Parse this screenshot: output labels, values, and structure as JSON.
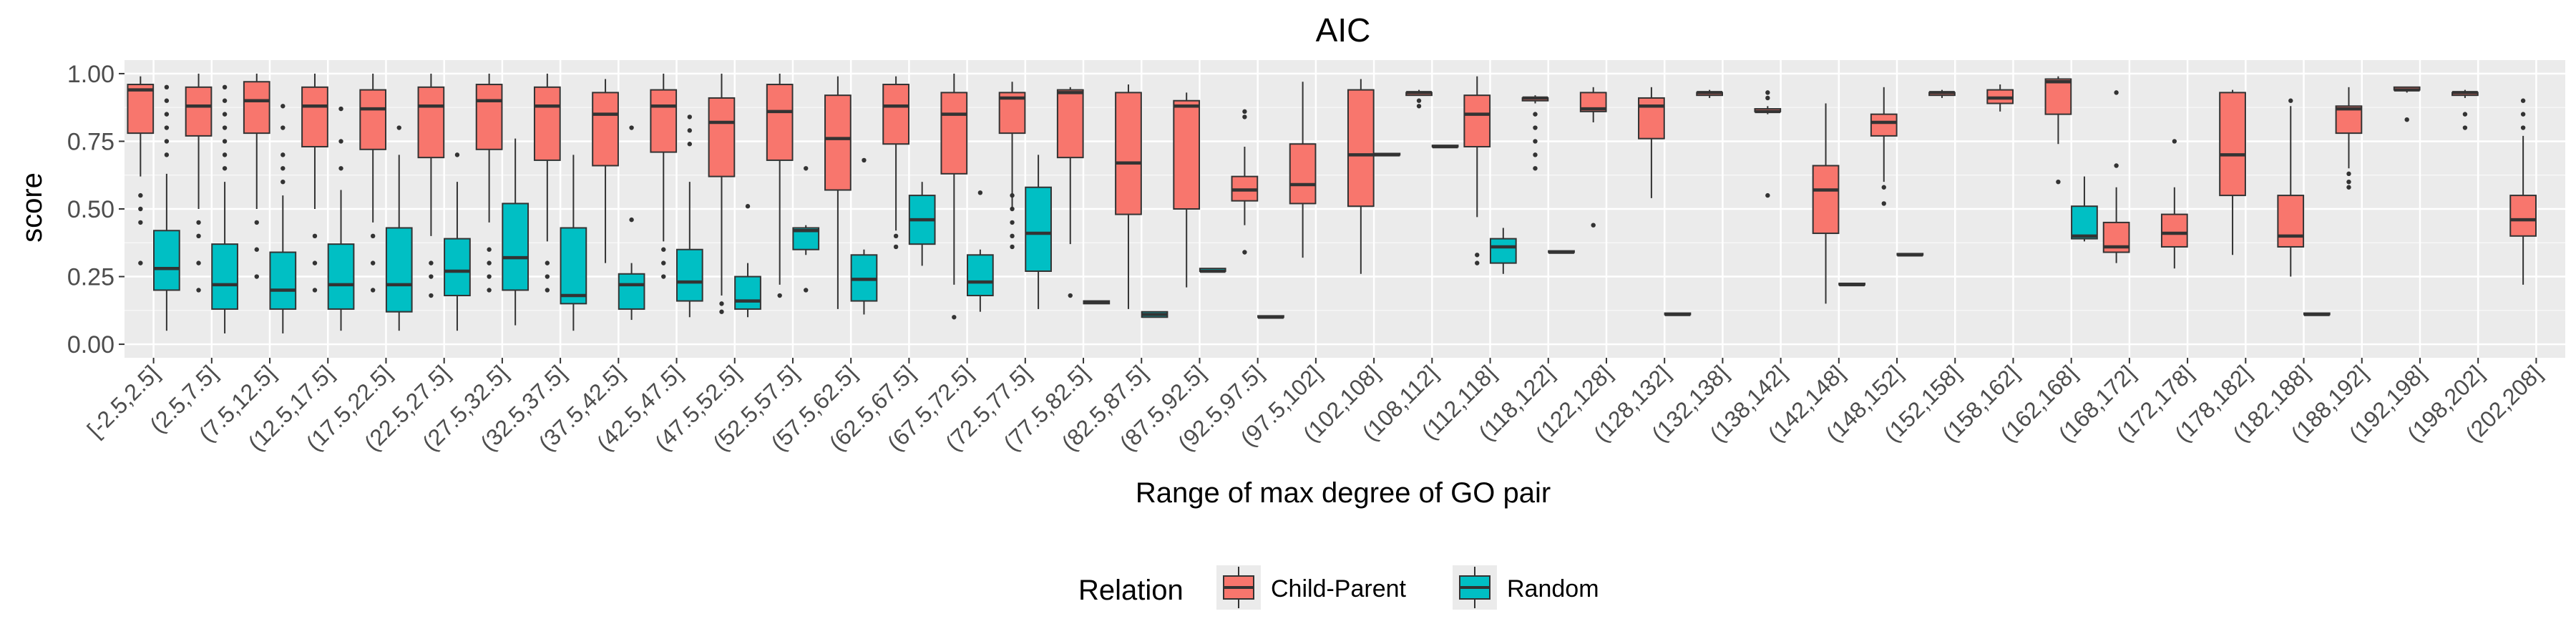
{
  "chart_data": {
    "type": "boxplot",
    "title": "AIC",
    "xlabel": "Range of max degree of GO pair",
    "ylabel": "score",
    "ylim": [
      0,
      1
    ],
    "yticks": [
      "0.00",
      "0.25",
      "0.50",
      "0.75",
      "1.00"
    ],
    "ytick_values": [
      0,
      0.25,
      0.5,
      0.75,
      1.0
    ],
    "grid": true,
    "legend": {
      "title": "Relation",
      "position": "bottom",
      "entries": [
        {
          "name": "Child-Parent",
          "color": "#F8766D"
        },
        {
          "name": "Random",
          "color": "#00BFC4"
        }
      ]
    },
    "categories": [
      "[-2.5,2.5]",
      "(2.5,7.5]",
      "(7.5,12.5]",
      "(12.5,17.5]",
      "(17.5,22.5]",
      "(22.5,27.5]",
      "(27.5,32.5]",
      "(32.5,37.5]",
      "(37.5,42.5]",
      "(42.5,47.5]",
      "(47.5,52.5]",
      "(52.5,57.5]",
      "(57.5,62.5]",
      "(62.5,67.5]",
      "(67.5,72.5]",
      "(72.5,77.5]",
      "(77.5,82.5]",
      "(82.5,87.5]",
      "(87.5,92.5]",
      "(92.5,97.5]",
      "(97.5,102]",
      "(102,108]",
      "(108,112]",
      "(112,118]",
      "(118,122]",
      "(122,128]",
      "(128,132]",
      "(132,138]",
      "(138,142]",
      "(142,148]",
      "(148,152]",
      "(152,158]",
      "(158,162]",
      "(162,168]",
      "(168,172]",
      "(172,178]",
      "(178,182]",
      "(182,188]",
      "(188,192]",
      "(192,198]",
      "(198,202]",
      "(202,208]"
    ],
    "series": [
      {
        "name": "Child-Parent",
        "color": "#F8766D",
        "boxes": [
          {
            "cat": 0,
            "q1": 0.78,
            "med": 0.94,
            "q3": 0.96,
            "lo": 0.62,
            "hi": 0.99,
            "out": [
              0.3,
              0.45,
              0.5,
              0.55
            ]
          },
          {
            "cat": 1,
            "q1": 0.77,
            "med": 0.88,
            "q3": 0.95,
            "lo": 0.5,
            "hi": 1.0,
            "out": [
              0.2,
              0.3,
              0.4,
              0.45
            ]
          },
          {
            "cat": 2,
            "q1": 0.78,
            "med": 0.9,
            "q3": 0.97,
            "lo": 0.5,
            "hi": 1.0,
            "out": [
              0.25,
              0.35,
              0.45
            ]
          },
          {
            "cat": 3,
            "q1": 0.73,
            "med": 0.88,
            "q3": 0.95,
            "lo": 0.5,
            "hi": 1.0,
            "out": [
              0.2,
              0.3,
              0.4
            ]
          },
          {
            "cat": 4,
            "q1": 0.72,
            "med": 0.87,
            "q3": 0.94,
            "lo": 0.45,
            "hi": 1.0,
            "out": [
              0.2,
              0.3,
              0.4
            ]
          },
          {
            "cat": 5,
            "q1": 0.69,
            "med": 0.88,
            "q3": 0.95,
            "lo": 0.4,
            "hi": 1.0,
            "out": [
              0.18,
              0.25,
              0.3
            ]
          },
          {
            "cat": 6,
            "q1": 0.72,
            "med": 0.9,
            "q3": 0.96,
            "lo": 0.45,
            "hi": 1.0,
            "out": [
              0.2,
              0.25,
              0.3,
              0.35
            ]
          },
          {
            "cat": 7,
            "q1": 0.68,
            "med": 0.88,
            "q3": 0.95,
            "lo": 0.38,
            "hi": 1.0,
            "out": [
              0.2,
              0.25,
              0.3
            ]
          },
          {
            "cat": 8,
            "q1": 0.66,
            "med": 0.85,
            "q3": 0.93,
            "lo": 0.3,
            "hi": 0.98,
            "out": []
          },
          {
            "cat": 9,
            "q1": 0.71,
            "med": 0.88,
            "q3": 0.94,
            "lo": 0.38,
            "hi": 1.0,
            "out": [
              0.25,
              0.3,
              0.35
            ]
          },
          {
            "cat": 10,
            "q1": 0.62,
            "med": 0.82,
            "q3": 0.91,
            "lo": 0.18,
            "hi": 1.0,
            "out": [
              0.12,
              0.15
            ]
          },
          {
            "cat": 11,
            "q1": 0.68,
            "med": 0.86,
            "q3": 0.96,
            "lo": 0.22,
            "hi": 1.0,
            "out": [
              0.18
            ]
          },
          {
            "cat": 12,
            "q1": 0.57,
            "med": 0.76,
            "q3": 0.92,
            "lo": 0.13,
            "hi": 0.99,
            "out": []
          },
          {
            "cat": 13,
            "q1": 0.74,
            "med": 0.88,
            "q3": 0.96,
            "lo": 0.42,
            "hi": 0.99,
            "out": [
              0.36,
              0.4
            ]
          },
          {
            "cat": 14,
            "q1": 0.63,
            "med": 0.85,
            "q3": 0.93,
            "lo": 0.22,
            "hi": 1.0,
            "out": [
              0.1
            ]
          },
          {
            "cat": 15,
            "q1": 0.78,
            "med": 0.91,
            "q3": 0.93,
            "lo": 0.5,
            "hi": 0.97,
            "out": [
              0.36,
              0.4,
              0.45,
              0.5,
              0.55
            ]
          },
          {
            "cat": 16,
            "q1": 0.69,
            "med": 0.93,
            "q3": 0.94,
            "lo": 0.37,
            "hi": 0.95,
            "out": [
              0.18
            ]
          },
          {
            "cat": 17,
            "q1": 0.48,
            "med": 0.67,
            "q3": 0.93,
            "lo": 0.13,
            "hi": 0.96,
            "out": []
          },
          {
            "cat": 18,
            "q1": 0.5,
            "med": 0.88,
            "q3": 0.9,
            "lo": 0.21,
            "hi": 0.93,
            "out": []
          },
          {
            "cat": 19,
            "q1": 0.53,
            "med": 0.57,
            "q3": 0.62,
            "lo": 0.44,
            "hi": 0.73,
            "out": [
              0.34,
              0.84,
              0.86
            ]
          },
          {
            "cat": 20,
            "q1": 0.52,
            "med": 0.59,
            "q3": 0.74,
            "lo": 0.32,
            "hi": 0.97,
            "out": []
          },
          {
            "cat": 21,
            "q1": 0.51,
            "med": 0.7,
            "q3": 0.94,
            "lo": 0.26,
            "hi": 0.98,
            "out": []
          },
          {
            "cat": 22,
            "q1": 0.92,
            "med": 0.93,
            "q3": 0.93,
            "lo": 0.92,
            "hi": 0.94,
            "out": [
              0.88,
              0.9
            ]
          },
          {
            "cat": 23,
            "q1": 0.73,
            "med": 0.85,
            "q3": 0.92,
            "lo": 0.47,
            "hi": 0.99,
            "out": [
              0.3,
              0.33
            ]
          },
          {
            "cat": 24,
            "q1": 0.9,
            "med": 0.91,
            "q3": 0.91,
            "lo": 0.89,
            "hi": 0.92,
            "out": [
              0.65,
              0.7,
              0.75,
              0.8,
              0.85
            ]
          },
          {
            "cat": 25,
            "q1": 0.86,
            "med": 0.87,
            "q3": 0.93,
            "lo": 0.82,
            "hi": 0.95,
            "out": [
              0.44
            ]
          },
          {
            "cat": 26,
            "q1": 0.76,
            "med": 0.88,
            "q3": 0.91,
            "lo": 0.54,
            "hi": 0.95,
            "out": []
          },
          {
            "cat": 27,
            "q1": 0.92,
            "med": 0.93,
            "q3": 0.93,
            "lo": 0.91,
            "hi": 0.94,
            "out": []
          },
          {
            "cat": 28,
            "q1": 0.86,
            "med": 0.86,
            "q3": 0.87,
            "lo": 0.85,
            "hi": 0.88,
            "out": [
              0.55,
              0.91,
              0.93
            ]
          },
          {
            "cat": 29,
            "q1": 0.41,
            "med": 0.57,
            "q3": 0.66,
            "lo": 0.15,
            "hi": 0.89,
            "out": []
          },
          {
            "cat": 30,
            "q1": 0.77,
            "med": 0.82,
            "q3": 0.85,
            "lo": 0.6,
            "hi": 0.95,
            "out": [
              0.52,
              0.58
            ]
          },
          {
            "cat": 31,
            "q1": 0.92,
            "med": 0.93,
            "q3": 0.93,
            "lo": 0.91,
            "hi": 0.94,
            "out": []
          },
          {
            "cat": 32,
            "q1": 0.89,
            "med": 0.91,
            "q3": 0.94,
            "lo": 0.86,
            "hi": 0.96,
            "out": []
          },
          {
            "cat": 33,
            "q1": 0.85,
            "med": 0.97,
            "q3": 0.98,
            "lo": 0.74,
            "hi": 0.99,
            "out": [
              0.6
            ]
          },
          {
            "cat": 34,
            "q1": 0.34,
            "med": 0.36,
            "q3": 0.45,
            "lo": 0.3,
            "hi": 0.58,
            "out": [
              0.66,
              0.93
            ]
          },
          {
            "cat": 35,
            "q1": 0.36,
            "med": 0.41,
            "q3": 0.48,
            "lo": 0.28,
            "hi": 0.58,
            "out": [
              0.75
            ]
          },
          {
            "cat": 36,
            "q1": 0.55,
            "med": 0.7,
            "q3": 0.93,
            "lo": 0.33,
            "hi": 0.94,
            "out": []
          },
          {
            "cat": 37,
            "q1": 0.36,
            "med": 0.4,
            "q3": 0.55,
            "lo": 0.25,
            "hi": 0.88,
            "out": [
              0.9
            ]
          },
          {
            "cat": 38,
            "q1": 0.78,
            "med": 0.87,
            "q3": 0.88,
            "lo": 0.65,
            "hi": 0.95,
            "out": [
              0.58,
              0.6,
              0.63
            ]
          },
          {
            "cat": 39,
            "q1": 0.94,
            "med": 0.94,
            "q3": 0.95,
            "lo": 0.93,
            "hi": 0.95,
            "out": [
              0.83
            ]
          },
          {
            "cat": 40,
            "q1": 0.92,
            "med": 0.93,
            "q3": 0.93,
            "lo": 0.91,
            "hi": 0.94,
            "out": [
              0.8,
              0.85
            ]
          },
          {
            "cat": 41,
            "q1": 0.4,
            "med": 0.46,
            "q3": 0.55,
            "lo": 0.22,
            "hi": 0.77,
            "out": [
              0.8,
              0.85,
              0.9
            ]
          }
        ]
      },
      {
        "name": "Random",
        "color": "#00BFC4",
        "boxes": [
          {
            "cat": 0,
            "q1": 0.2,
            "med": 0.28,
            "q3": 0.42,
            "lo": 0.05,
            "hi": 0.63,
            "out": [
              0.7,
              0.75,
              0.8,
              0.85,
              0.9,
              0.95
            ]
          },
          {
            "cat": 1,
            "q1": 0.13,
            "med": 0.22,
            "q3": 0.37,
            "lo": 0.04,
            "hi": 0.6,
            "out": [
              0.65,
              0.7,
              0.75,
              0.8,
              0.85,
              0.9,
              0.95
            ]
          },
          {
            "cat": 2,
            "q1": 0.13,
            "med": 0.2,
            "q3": 0.34,
            "lo": 0.04,
            "hi": 0.55,
            "out": [
              0.6,
              0.65,
              0.7,
              0.8,
              0.88
            ]
          },
          {
            "cat": 3,
            "q1": 0.13,
            "med": 0.22,
            "q3": 0.37,
            "lo": 0.05,
            "hi": 0.57,
            "out": [
              0.65,
              0.75,
              0.87
            ]
          },
          {
            "cat": 4,
            "q1": 0.12,
            "med": 0.22,
            "q3": 0.43,
            "lo": 0.05,
            "hi": 0.7,
            "out": [
              0.8
            ]
          },
          {
            "cat": 5,
            "q1": 0.18,
            "med": 0.27,
            "q3": 0.39,
            "lo": 0.05,
            "hi": 0.6,
            "out": [
              0.7
            ]
          },
          {
            "cat": 6,
            "q1": 0.2,
            "med": 0.32,
            "q3": 0.52,
            "lo": 0.07,
            "hi": 0.76,
            "out": []
          },
          {
            "cat": 7,
            "q1": 0.15,
            "med": 0.18,
            "q3": 0.43,
            "lo": 0.05,
            "hi": 0.7,
            "out": []
          },
          {
            "cat": 8,
            "q1": 0.13,
            "med": 0.22,
            "q3": 0.26,
            "lo": 0.09,
            "hi": 0.3,
            "out": [
              0.46,
              0.8
            ]
          },
          {
            "cat": 9,
            "q1": 0.16,
            "med": 0.23,
            "q3": 0.35,
            "lo": 0.1,
            "hi": 0.6,
            "out": [
              0.74,
              0.79,
              0.84
            ]
          },
          {
            "cat": 10,
            "q1": 0.13,
            "med": 0.16,
            "q3": 0.25,
            "lo": 0.1,
            "hi": 0.3,
            "out": [
              0.51
            ]
          },
          {
            "cat": 11,
            "q1": 0.35,
            "med": 0.42,
            "q3": 0.43,
            "lo": 0.33,
            "hi": 0.44,
            "out": [
              0.2,
              0.65
            ]
          },
          {
            "cat": 12,
            "q1": 0.16,
            "med": 0.24,
            "q3": 0.33,
            "lo": 0.11,
            "hi": 0.35,
            "out": [
              0.68
            ]
          },
          {
            "cat": 13,
            "q1": 0.37,
            "med": 0.46,
            "q3": 0.55,
            "lo": 0.29,
            "hi": 0.6,
            "out": []
          },
          {
            "cat": 14,
            "q1": 0.18,
            "med": 0.23,
            "q3": 0.33,
            "lo": 0.12,
            "hi": 0.35,
            "out": [
              0.56
            ]
          },
          {
            "cat": 15,
            "q1": 0.27,
            "med": 0.41,
            "q3": 0.58,
            "lo": 0.13,
            "hi": 0.7,
            "out": []
          },
          {
            "cat": 16,
            "q1": 0.15,
            "med": 0.155,
            "q3": 0.16,
            "lo": 0.15,
            "hi": 0.16,
            "out": []
          },
          {
            "cat": 17,
            "q1": 0.1,
            "med": 0.11,
            "q3": 0.12,
            "lo": 0.1,
            "hi": 0.12,
            "out": []
          },
          {
            "cat": 18,
            "q1": 0.27,
            "med": 0.27,
            "q3": 0.28,
            "lo": 0.27,
            "hi": 0.28,
            "out": []
          },
          {
            "cat": 19,
            "q1": 0.1,
            "med": 0.1,
            "q3": 0.105,
            "lo": 0.1,
            "hi": 0.105,
            "out": []
          },
          {
            "cat": 21,
            "q1": 0.7,
            "med": 0.7,
            "q3": 0.705,
            "lo": 0.7,
            "hi": 0.705,
            "out": []
          },
          {
            "cat": 22,
            "q1": 0.73,
            "med": 0.73,
            "q3": 0.735,
            "lo": 0.73,
            "hi": 0.735,
            "out": []
          },
          {
            "cat": 23,
            "q1": 0.3,
            "med": 0.36,
            "q3": 0.39,
            "lo": 0.26,
            "hi": 0.43,
            "out": []
          },
          {
            "cat": 24,
            "q1": 0.34,
            "med": 0.34,
            "q3": 0.345,
            "lo": 0.34,
            "hi": 0.345,
            "out": []
          },
          {
            "cat": 26,
            "q1": 0.11,
            "med": 0.11,
            "q3": 0.115,
            "lo": 0.11,
            "hi": 0.115,
            "out": []
          },
          {
            "cat": 29,
            "q1": 0.22,
            "med": 0.22,
            "q3": 0.225,
            "lo": 0.22,
            "hi": 0.225,
            "out": []
          },
          {
            "cat": 30,
            "q1": 0.33,
            "med": 0.33,
            "q3": 0.335,
            "lo": 0.33,
            "hi": 0.335,
            "out": []
          },
          {
            "cat": 33,
            "q1": 0.39,
            "med": 0.4,
            "q3": 0.51,
            "lo": 0.38,
            "hi": 0.62,
            "out": []
          },
          {
            "cat": 37,
            "q1": 0.11,
            "med": 0.11,
            "q3": 0.115,
            "lo": 0.11,
            "hi": 0.115,
            "out": []
          }
        ]
      }
    ]
  }
}
